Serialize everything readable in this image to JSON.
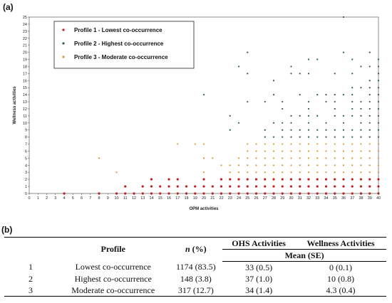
{
  "panel_a_label": "(a)",
  "panel_b_label": "(b)",
  "chart_data": {
    "type": "scatter",
    "xlabel": "OPM activities",
    "ylabel": "Wellness activities",
    "xlim": [
      0,
      40
    ],
    "ylim": [
      0,
      25
    ],
    "x_ticks": [
      0,
      1,
      2,
      3,
      4,
      5,
      6,
      7,
      8,
      9,
      10,
      11,
      12,
      13,
      14,
      15,
      16,
      17,
      18,
      19,
      20,
      21,
      22,
      23,
      24,
      25,
      26,
      27,
      28,
      29,
      30,
      31,
      32,
      33,
      34,
      35,
      36,
      37,
      38,
      39,
      40
    ],
    "y_ticks": [
      0,
      1,
      2,
      3,
      4,
      5,
      6,
      7,
      8,
      9,
      10,
      11,
      12,
      13,
      14,
      15,
      16,
      17,
      18,
      19,
      20,
      21,
      22,
      23,
      24,
      25
    ],
    "grid": false,
    "legend_placement": "top-left",
    "series": [
      {
        "name": "Profile 1 - Lowest co-occurrence",
        "color": "#c0211f",
        "points": [
          [
            4,
            0
          ],
          [
            8,
            0
          ],
          [
            10,
            0
          ],
          [
            11,
            0
          ],
          [
            11,
            1
          ],
          [
            12,
            0
          ],
          [
            13,
            0
          ],
          [
            13,
            1
          ],
          [
            14,
            0
          ],
          [
            14,
            1
          ],
          [
            14,
            2
          ],
          [
            15,
            0
          ],
          [
            15,
            1
          ],
          [
            16,
            0
          ],
          [
            16,
            1
          ],
          [
            16,
            2
          ],
          [
            17,
            0
          ],
          [
            17,
            1
          ],
          [
            17,
            2
          ],
          [
            18,
            0
          ],
          [
            18,
            1
          ],
          [
            19,
            0
          ],
          [
            19,
            1
          ],
          [
            20,
            0
          ],
          [
            20,
            1
          ],
          [
            20,
            2
          ],
          [
            21,
            0
          ],
          [
            21,
            1
          ],
          [
            22,
            0
          ],
          [
            22,
            1
          ],
          [
            22,
            2
          ],
          [
            23,
            0
          ],
          [
            23,
            1
          ],
          [
            23,
            2
          ],
          [
            24,
            0
          ],
          [
            24,
            1
          ],
          [
            24,
            2
          ],
          [
            25,
            0
          ],
          [
            25,
            1
          ],
          [
            25,
            2
          ],
          [
            26,
            0
          ],
          [
            26,
            1
          ],
          [
            26,
            2
          ],
          [
            27,
            0
          ],
          [
            27,
            1
          ],
          [
            27,
            2
          ],
          [
            28,
            0
          ],
          [
            28,
            1
          ],
          [
            28,
            2
          ],
          [
            29,
            0
          ],
          [
            29,
            1
          ],
          [
            29,
            2
          ],
          [
            30,
            0
          ],
          [
            30,
            1
          ],
          [
            30,
            2
          ],
          [
            31,
            0
          ],
          [
            31,
            1
          ],
          [
            31,
            2
          ],
          [
            32,
            0
          ],
          [
            32,
            1
          ],
          [
            32,
            2
          ],
          [
            33,
            0
          ],
          [
            33,
            1
          ],
          [
            33,
            2
          ],
          [
            34,
            0
          ],
          [
            34,
            1
          ],
          [
            34,
            2
          ],
          [
            35,
            0
          ],
          [
            35,
            1
          ],
          [
            35,
            2
          ],
          [
            36,
            0
          ],
          [
            36,
            1
          ],
          [
            36,
            2
          ],
          [
            37,
            0
          ],
          [
            37,
            1
          ],
          [
            37,
            2
          ],
          [
            38,
            0
          ],
          [
            38,
            1
          ],
          [
            38,
            2
          ],
          [
            39,
            0
          ],
          [
            39,
            1
          ],
          [
            39,
            2
          ],
          [
            40,
            0
          ],
          [
            40,
            1
          ],
          [
            40,
            2
          ]
        ]
      },
      {
        "name": "Profile 2 - Highest co-occurrence",
        "color": "#2e5e4e",
        "points": [
          [
            20,
            14
          ],
          [
            23,
            9
          ],
          [
            23,
            11
          ],
          [
            24,
            10
          ],
          [
            24,
            18
          ],
          [
            25,
            13
          ],
          [
            25,
            17
          ],
          [
            25,
            20
          ],
          [
            27,
            8
          ],
          [
            27,
            9
          ],
          [
            27,
            13
          ],
          [
            28,
            8
          ],
          [
            28,
            10
          ],
          [
            28,
            14
          ],
          [
            28,
            16
          ],
          [
            29,
            8
          ],
          [
            29,
            9
          ],
          [
            29,
            10
          ],
          [
            29,
            12
          ],
          [
            29,
            13
          ],
          [
            30,
            8
          ],
          [
            30,
            9
          ],
          [
            30,
            10
          ],
          [
            30,
            11
          ],
          [
            30,
            17
          ],
          [
            30,
            18
          ],
          [
            31,
            8
          ],
          [
            31,
            9
          ],
          [
            31,
            11
          ],
          [
            31,
            14
          ],
          [
            31,
            17
          ],
          [
            32,
            8
          ],
          [
            32,
            9
          ],
          [
            32,
            10
          ],
          [
            32,
            11
          ],
          [
            32,
            12
          ],
          [
            32,
            13
          ],
          [
            32,
            17
          ],
          [
            32,
            19
          ],
          [
            33,
            8
          ],
          [
            33,
            9
          ],
          [
            33,
            11
          ],
          [
            33,
            14
          ],
          [
            33,
            19
          ],
          [
            34,
            8
          ],
          [
            34,
            9
          ],
          [
            34,
            10
          ],
          [
            34,
            13
          ],
          [
            34,
            14
          ],
          [
            35,
            8
          ],
          [
            35,
            9
          ],
          [
            35,
            11
          ],
          [
            35,
            12
          ],
          [
            35,
            13
          ],
          [
            35,
            14
          ],
          [
            35,
            17
          ],
          [
            36,
            8
          ],
          [
            36,
            9
          ],
          [
            36,
            10
          ],
          [
            36,
            11
          ],
          [
            36,
            14
          ],
          [
            36,
            20
          ],
          [
            36,
            25
          ],
          [
            37,
            8
          ],
          [
            37,
            9
          ],
          [
            37,
            11
          ],
          [
            37,
            12
          ],
          [
            37,
            13
          ],
          [
            37,
            14
          ],
          [
            37,
            15
          ],
          [
            37,
            17
          ],
          [
            37,
            19
          ],
          [
            38,
            8
          ],
          [
            38,
            9
          ],
          [
            38,
            10
          ],
          [
            38,
            11
          ],
          [
            38,
            12
          ],
          [
            38,
            13
          ],
          [
            38,
            15
          ],
          [
            38,
            18
          ],
          [
            39,
            8
          ],
          [
            39,
            9
          ],
          [
            39,
            10
          ],
          [
            39,
            11
          ],
          [
            39,
            12
          ],
          [
            39,
            13
          ],
          [
            39,
            14
          ],
          [
            39,
            15
          ],
          [
            39,
            16
          ],
          [
            39,
            18
          ],
          [
            39,
            20
          ],
          [
            40,
            8
          ],
          [
            40,
            9
          ],
          [
            40,
            10
          ],
          [
            40,
            11
          ],
          [
            40,
            12
          ],
          [
            40,
            13
          ],
          [
            40,
            14
          ],
          [
            40,
            15
          ],
          [
            40,
            16
          ],
          [
            40,
            17
          ],
          [
            40,
            18
          ],
          [
            40,
            19
          ]
        ]
      },
      {
        "name": "Profile 3 - Moderate co-occurrence",
        "color": "#d79a2a",
        "points": [
          [
            8,
            5
          ],
          [
            10,
            3
          ],
          [
            17,
            7
          ],
          [
            19,
            7
          ],
          [
            20,
            3
          ],
          [
            20,
            5
          ],
          [
            20,
            7
          ],
          [
            21,
            5
          ],
          [
            22,
            4
          ],
          [
            23,
            3
          ],
          [
            23,
            4
          ],
          [
            24,
            3
          ],
          [
            24,
            4
          ],
          [
            24,
            5
          ],
          [
            25,
            3
          ],
          [
            25,
            4
          ],
          [
            25,
            5
          ],
          [
            25,
            6
          ],
          [
            25,
            7
          ],
          [
            26,
            3
          ],
          [
            26,
            4
          ],
          [
            26,
            5
          ],
          [
            26,
            6
          ],
          [
            26,
            7
          ],
          [
            27,
            3
          ],
          [
            27,
            4
          ],
          [
            27,
            5
          ],
          [
            27,
            6
          ],
          [
            27,
            7
          ],
          [
            28,
            3
          ],
          [
            28,
            4
          ],
          [
            28,
            5
          ],
          [
            28,
            6
          ],
          [
            28,
            7
          ],
          [
            29,
            3
          ],
          [
            29,
            4
          ],
          [
            29,
            5
          ],
          [
            29,
            6
          ],
          [
            29,
            7
          ],
          [
            30,
            3
          ],
          [
            30,
            4
          ],
          [
            30,
            5
          ],
          [
            30,
            6
          ],
          [
            30,
            7
          ],
          [
            31,
            3
          ],
          [
            31,
            4
          ],
          [
            31,
            5
          ],
          [
            31,
            6
          ],
          [
            31,
            7
          ],
          [
            32,
            3
          ],
          [
            32,
            4
          ],
          [
            32,
            5
          ],
          [
            32,
            6
          ],
          [
            32,
            7
          ],
          [
            33,
            3
          ],
          [
            33,
            4
          ],
          [
            33,
            5
          ],
          [
            33,
            6
          ],
          [
            33,
            7
          ],
          [
            34,
            3
          ],
          [
            34,
            4
          ],
          [
            34,
            5
          ],
          [
            34,
            6
          ],
          [
            34,
            7
          ],
          [
            35,
            3
          ],
          [
            35,
            4
          ],
          [
            35,
            5
          ],
          [
            35,
            6
          ],
          [
            35,
            7
          ],
          [
            36,
            3
          ],
          [
            36,
            4
          ],
          [
            36,
            5
          ],
          [
            36,
            6
          ],
          [
            36,
            7
          ],
          [
            37,
            3
          ],
          [
            37,
            4
          ],
          [
            37,
            5
          ],
          [
            37,
            6
          ],
          [
            37,
            7
          ],
          [
            38,
            3
          ],
          [
            38,
            4
          ],
          [
            38,
            5
          ],
          [
            38,
            6
          ],
          [
            38,
            7
          ],
          [
            39,
            3
          ],
          [
            39,
            4
          ],
          [
            39,
            5
          ],
          [
            39,
            6
          ],
          [
            39,
            7
          ],
          [
            40,
            3
          ],
          [
            40,
            4
          ],
          [
            40,
            5
          ],
          [
            40,
            6
          ],
          [
            40,
            7
          ]
        ]
      }
    ]
  },
  "table": {
    "header_profile": "Profile",
    "header_n": "n (%)",
    "header_ohs": "OHS Activities",
    "header_wellness": "Wellness Activities",
    "header_mean": "Mean (SE)",
    "rows": [
      {
        "idx": "1",
        "profile": "Lowest co-occurrence",
        "n": "1174 (83.5)",
        "ohs": "33 (0.5)",
        "wellness": "0 (0.1)"
      },
      {
        "idx": "2",
        "profile": "Highest co-occurrence",
        "n": "148 (3.8)",
        "ohs": "37 (1.0)",
        "wellness": "10 (0.8)"
      },
      {
        "idx": "3",
        "profile": "Moderate co-occurrence",
        "n": "317 (12.7)",
        "ohs": "34 (1.4)",
        "wellness": "4.3 (0.4)"
      }
    ]
  }
}
